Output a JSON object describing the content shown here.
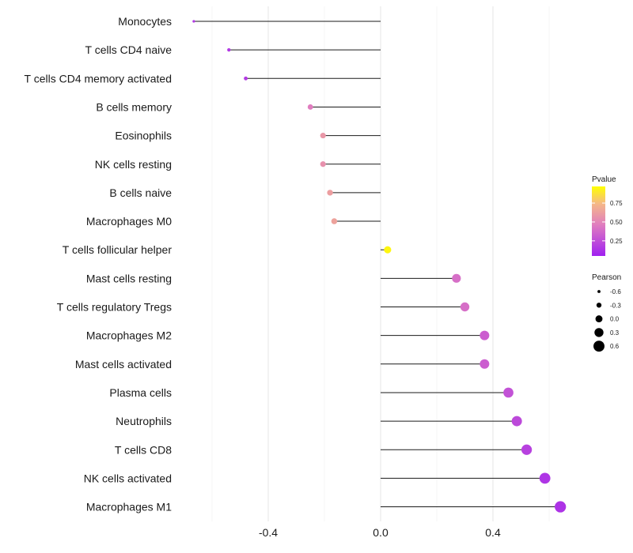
{
  "chart_data": {
    "type": "lollipop",
    "title": "",
    "xlabel": "",
    "ylabel": "",
    "xlim": [
      -0.75,
      0.75
    ],
    "xticks": [
      -0.4,
      0.0,
      0.4
    ],
    "xtick_labels": [
      "-0.4",
      "0.0",
      "0.4"
    ],
    "categories": [
      "Monocytes",
      "T cells CD4 naive",
      "T cells CD4 memory activated",
      "B cells memory",
      "Eosinophils",
      "NK cells resting",
      "B cells naive",
      "Macrophages M0",
      "T cells follicular helper",
      "Mast cells resting",
      "T cells regulatory  Tregs ",
      "Macrophages M2",
      "Mast cells activated",
      "Plasma cells",
      "Neutrophils",
      "T cells CD8",
      "NK cells activated",
      "Macrophages M1"
    ],
    "series": [
      {
        "name": "Pearson",
        "values": [
          -0.665,
          -0.54,
          -0.48,
          -0.25,
          -0.205,
          -0.205,
          -0.18,
          -0.165,
          0.025,
          0.27,
          0.3,
          0.37,
          0.37,
          0.455,
          0.485,
          0.52,
          0.585,
          0.64
        ]
      },
      {
        "name": "Pvalue",
        "values": [
          0.12,
          0.12,
          0.13,
          0.45,
          0.58,
          0.55,
          0.62,
          0.64,
          0.97,
          0.38,
          0.38,
          0.3,
          0.3,
          0.24,
          0.2,
          0.16,
          0.1,
          0.09
        ]
      }
    ],
    "legend": {
      "position": "right",
      "color": {
        "title": "Pvalue",
        "ticks": [
          0.75,
          0.5,
          0.25
        ],
        "tick_labels": [
          "0.75",
          "0.50",
          "0.25"
        ],
        "colors": [
          "#a020f0",
          "#e07dbf",
          "#ffff00"
        ]
      },
      "size": {
        "title": "Pearson",
        "values": [
          -0.6,
          -0.3,
          0.0,
          0.3,
          0.6
        ],
        "labels": [
          "-0.6",
          "-0.3",
          "0.0",
          "0.3",
          "0.6"
        ]
      }
    },
    "grid": true
  }
}
